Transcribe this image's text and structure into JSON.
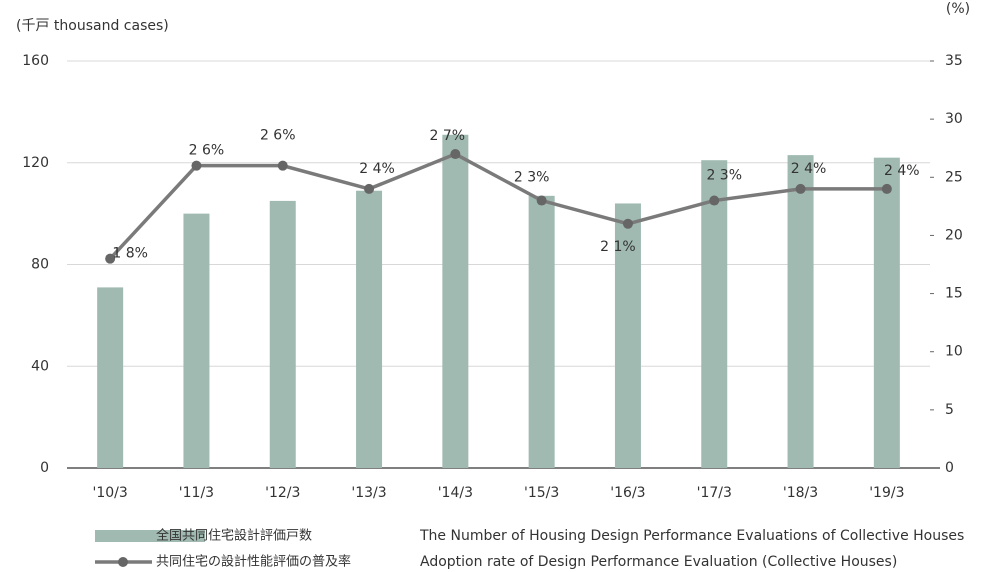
{
  "chart_data": {
    "type": "bar_line",
    "y_label": "(千戸 thousand cases)",
    "y2_label": "(%)",
    "categories": [
      "'10/3",
      "'11/3",
      "'12/3",
      "'13/3",
      "'14/3",
      "'15/3",
      "'16/3",
      "'17/3",
      "'18/3",
      "'19/3"
    ],
    "series": [
      {
        "name": "全国共同住宅設計評価戸数",
        "description": "The Number of Housing Design Performance Evaluations of Collective Houses",
        "kind": "bar",
        "color": "#a0bab2",
        "values": [
          71,
          100,
          105,
          109,
          131,
          107,
          104,
          121,
          123,
          122
        ]
      },
      {
        "name": "共同住宅の設計性能評価の普及率",
        "description": "Adoption rate of Design Performance Evaluation (Collective Houses)",
        "kind": "line",
        "axis": "y2",
        "color": "#7a7a7a",
        "values": [
          18,
          26,
          26,
          24,
          27,
          23,
          21,
          23,
          24,
          24
        ],
        "value_labels": [
          "1 8%",
          "2 6%",
          "2 6%",
          "2 4%",
          "2 7%",
          "2 3%",
          "2 1%",
          "2 3%",
          "2 4%",
          "2 4%"
        ]
      }
    ],
    "ylim": [
      0,
      160
    ],
    "yticks": [
      0,
      40,
      80,
      120,
      160
    ],
    "y2lim": [
      0,
      35
    ],
    "y2ticks": [
      0,
      5,
      10,
      15,
      20,
      25,
      30,
      35
    ],
    "grid": true
  }
}
